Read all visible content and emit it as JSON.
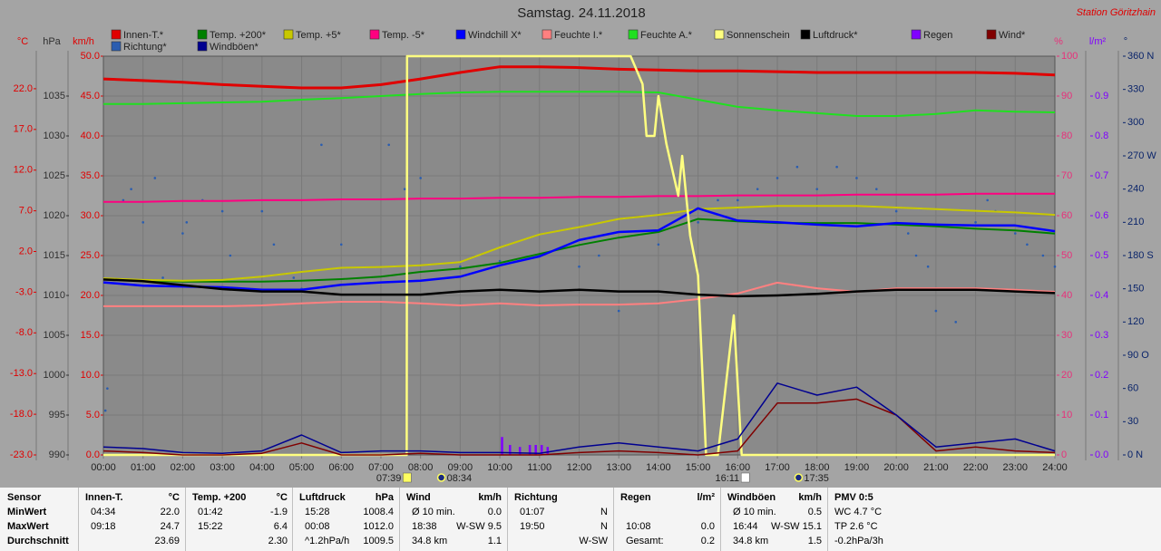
{
  "chart_data": {
    "type": "line",
    "title": "Samstag. 24.11.2018",
    "station": "Station Göritzhain",
    "xlim": [
      0,
      24
    ],
    "xticks": [
      {
        "value": 0,
        "label": "00:00"
      },
      {
        "value": 1,
        "label": "01:00"
      },
      {
        "value": 2,
        "label": "02:00"
      },
      {
        "value": 3,
        "label": "03:00"
      },
      {
        "value": 4,
        "label": "04:00"
      },
      {
        "value": 5,
        "label": "05:00"
      },
      {
        "value": 6,
        "label": "06:00"
      },
      {
        "value": 7,
        "label": "07:00"
      },
      {
        "value": 8,
        "label": "08:00"
      },
      {
        "value": 9,
        "label": "09:00"
      },
      {
        "value": 10,
        "label": "10:00"
      },
      {
        "value": 11,
        "label": "11:00"
      },
      {
        "value": 12,
        "label": "12:00"
      },
      {
        "value": 13,
        "label": "13:00"
      },
      {
        "value": 14,
        "label": "14:00"
      },
      {
        "value": 15,
        "label": "15:00"
      },
      {
        "value": 16,
        "label": "16:00"
      },
      {
        "value": 17,
        "label": "17:00"
      },
      {
        "value": 18,
        "label": "18:00"
      },
      {
        "value": 19,
        "label": "19:00"
      },
      {
        "value": 20,
        "label": "20:00"
      },
      {
        "value": 21,
        "label": "21:00"
      },
      {
        "value": 22,
        "label": "22:00"
      },
      {
        "value": 23,
        "label": "23:00"
      },
      {
        "value": 24,
        "label": "24:00"
      }
    ],
    "x": [
      0,
      1,
      2,
      3,
      4,
      5,
      6,
      7,
      8,
      9,
      10,
      11,
      12,
      13,
      14,
      15,
      16,
      17,
      18,
      19,
      20,
      21,
      22,
      23,
      24
    ],
    "axes": [
      {
        "id": "temp",
        "unit": "°C",
        "color": "#e00000",
        "lim": [
          -23,
          26
        ],
        "ticks": [
          {
            "value": -23,
            "label": "-23.0"
          },
          {
            "value": -18,
            "label": "-18.0"
          },
          {
            "value": -13,
            "label": "-13.0"
          },
          {
            "value": -8,
            "label": "-8.0"
          },
          {
            "value": -3,
            "label": "-3.0"
          },
          {
            "value": 2,
            "label": "2.0"
          },
          {
            "value": 7,
            "label": "7.0"
          },
          {
            "value": 12,
            "label": "12.0"
          },
          {
            "value": 17,
            "label": "17.0"
          },
          {
            "value": 22,
            "label": "22.0"
          }
        ]
      },
      {
        "id": "press",
        "unit": "hPa",
        "color": "#303030",
        "lim": [
          990,
          1040
        ],
        "ticks": [
          990,
          995,
          1000,
          1005,
          1010,
          1015,
          1020,
          1025,
          1030,
          1035
        ]
      },
      {
        "id": "wind",
        "unit": "km/h",
        "color": "#e00000",
        "lim": [
          0,
          50
        ],
        "grid": true,
        "ticks": [
          {
            "value": 0,
            "label": "0.0"
          },
          {
            "value": 5,
            "label": "5.0"
          },
          {
            "value": 10,
            "label": "10.0"
          },
          {
            "value": 15,
            "label": "15.0"
          },
          {
            "value": 20,
            "label": "20.0"
          },
          {
            "value": 25,
            "label": "25.0"
          },
          {
            "value": 30,
            "label": "30.0"
          },
          {
            "value": 35,
            "label": "35.0"
          },
          {
            "value": 40,
            "label": "40.0"
          },
          {
            "value": 45,
            "label": "45.0"
          },
          {
            "value": 50,
            "label": "50.0"
          }
        ]
      },
      {
        "id": "hum",
        "unit": "%",
        "color": "#e8307a",
        "lim": [
          0,
          100
        ],
        "ticks": [
          0,
          10,
          20,
          30,
          40,
          50,
          60,
          70,
          80,
          90,
          100
        ]
      },
      {
        "id": "rain",
        "unit": "l/m²",
        "color": "#8000ff",
        "lim": [
          0,
          1
        ],
        "ticks": [
          {
            "value": 0,
            "label": "0.0"
          },
          0.1,
          0.2,
          0.3,
          0.4,
          0.5,
          0.6,
          0.7,
          0.8,
          0.9
        ]
      },
      {
        "id": "dir",
        "unit": "°",
        "color": "#0a246a",
        "lim": [
          0,
          360
        ],
        "ticks": [
          {
            "value": 0,
            "label": "0 N"
          },
          30,
          60,
          {
            "value": 90,
            "label": "90 O"
          },
          120,
          150,
          {
            "value": 180,
            "label": "180 S"
          },
          210,
          240,
          {
            "value": 270,
            "label": "270 W"
          },
          300,
          330,
          {
            "value": 360,
            "label": "360 N"
          }
        ]
      }
    ],
    "series": [
      {
        "name": "Innen-T.*",
        "color": "#e00000",
        "axis": "temp",
        "style": "line",
        "values": [
          23.2,
          23.0,
          22.8,
          22.5,
          22.3,
          22.1,
          22.1,
          22.5,
          23.2,
          24.0,
          24.7,
          24.7,
          24.6,
          24.4,
          24.3,
          24.2,
          24.2,
          24.1,
          24.0,
          24.0,
          24.0,
          24.0,
          24.0,
          23.9,
          23.7
        ]
      },
      {
        "name": "Temp. +200*",
        "color": "#008000",
        "axis": "temp",
        "style": "line",
        "values": [
          -1.4,
          -1.6,
          -1.7,
          -1.7,
          -1.7,
          -1.6,
          -1.4,
          -1.1,
          -0.5,
          -0.1,
          0.6,
          1.7,
          2.8,
          3.7,
          4.4,
          6.0,
          5.7,
          5.5,
          5.5,
          5.5,
          5.3,
          5.1,
          4.8,
          4.6,
          4.2
        ]
      },
      {
        "name": "Temp. +5*",
        "color": "#c8c800",
        "axis": "temp",
        "style": "line",
        "values": [
          -1.3,
          -1.5,
          -1.6,
          -1.5,
          -1.1,
          -0.5,
          0.0,
          0.1,
          0.3,
          0.7,
          2.5,
          4.1,
          5.0,
          6.0,
          6.5,
          7.2,
          7.4,
          7.6,
          7.6,
          7.6,
          7.4,
          7.2,
          7.0,
          6.8,
          6.5
        ]
      },
      {
        "name": "Temp. -5*",
        "color": "#ff0080",
        "axis": "temp",
        "style": "line",
        "values": [
          8.1,
          8.1,
          8.2,
          8.2,
          8.3,
          8.3,
          8.4,
          8.4,
          8.5,
          8.5,
          8.6,
          8.6,
          8.7,
          8.7,
          8.8,
          8.8,
          8.9,
          8.9,
          8.9,
          9.0,
          9.0,
          9.0,
          9.1,
          9.1,
          9.1
        ]
      },
      {
        "name": "Windchill X*",
        "color": "#0000ff",
        "axis": "temp",
        "style": "line",
        "values": [
          -1.8,
          -2.2,
          -2.3,
          -2.4,
          -2.7,
          -2.7,
          -2.1,
          -1.8,
          -1.6,
          -1.1,
          0.3,
          1.4,
          3.4,
          4.4,
          4.6,
          7.3,
          5.8,
          5.6,
          5.3,
          5.1,
          5.5,
          5.3,
          5.2,
          5.2,
          4.5
        ]
      },
      {
        "name": "Feuchte I.*",
        "color": "#ff8080",
        "axis": "hum",
        "style": "line",
        "values": [
          37.3,
          37.3,
          37.3,
          37.3,
          37.5,
          38.0,
          38.4,
          38.4,
          38.0,
          37.5,
          38.0,
          37.5,
          37.7,
          37.7,
          38.0,
          39.1,
          40.5,
          43.2,
          41.8,
          40.9,
          41.8,
          41.8,
          41.8,
          41.4,
          40.9
        ]
      },
      {
        "name": "Feuchte A.*",
        "color": "#20e020",
        "axis": "hum",
        "style": "line",
        "values": [
          88.0,
          88.0,
          88.2,
          88.4,
          88.6,
          89.1,
          89.5,
          90.0,
          90.5,
          90.9,
          91.1,
          91.1,
          91.1,
          91.1,
          90.9,
          89.1,
          87.3,
          86.4,
          85.7,
          85.0,
          85.0,
          85.5,
          86.4,
          86.1,
          85.9
        ]
      },
      {
        "name": "Sonnenschein",
        "color": "#ffff80",
        "axis": "hum",
        "style": "line",
        "x": [
          0,
          7.65,
          7.66,
          13.3,
          13.6,
          13.7,
          13.9,
          14.0,
          14.2,
          14.5,
          14.6,
          14.8,
          15.0,
          15.2,
          15.5,
          15.9,
          16.1,
          16.2,
          24
        ],
        "values": [
          0,
          0,
          100,
          100,
          93,
          80,
          80,
          90,
          78,
          65,
          75,
          55,
          45,
          0,
          0,
          35,
          0,
          0,
          0
        ]
      },
      {
        "name": "Luftdruck*",
        "color": "#000000",
        "axis": "press",
        "style": "line",
        "values": [
          1012.0,
          1011.8,
          1011.3,
          1010.8,
          1010.5,
          1010.5,
          1010.1,
          1010.1,
          1010.1,
          1010.5,
          1010.7,
          1010.5,
          1010.7,
          1010.5,
          1010.5,
          1010.1,
          1009.9,
          1010.0,
          1010.2,
          1010.5,
          1010.7,
          1010.7,
          1010.7,
          1010.5,
          1010.3
        ]
      },
      {
        "name": "Regen",
        "color": "#8000ff",
        "axis": "rain",
        "style": "bars",
        "x": [
          10.05,
          10.25,
          10.5,
          10.75,
          10.9,
          11.05,
          11.2
        ],
        "values": [
          0.045,
          0.025,
          0.02,
          0.025,
          0.025,
          0.025,
          0.02
        ]
      },
      {
        "name": "Wind*",
        "color": "#800000",
        "axis": "wind",
        "style": "line",
        "values": [
          0.5,
          0.3,
          0,
          0,
          0.2,
          1.5,
          0,
          0,
          0.2,
          0,
          0,
          0,
          0.3,
          0.5,
          0.3,
          0,
          0.5,
          6.5,
          6.5,
          7,
          5,
          0.5,
          1,
          0.5,
          0.3
        ]
      },
      {
        "name": "Richtung*",
        "color": "#2a5db0",
        "axis": "dir",
        "style": "dots",
        "x": [
          0.05,
          0.1,
          0.5,
          0.7,
          1.0,
          1.3,
          1.5,
          2.0,
          2.1,
          2.5,
          3.0,
          3.2,
          4.0,
          4.3,
          4.8,
          5.0,
          5.5,
          6.0,
          7.2,
          7.6,
          8.0,
          9.0,
          10.0,
          11.0,
          12.0,
          12.5,
          13.0,
          14.0,
          15.0,
          15.5,
          16.0,
          16.5,
          17.0,
          17.5,
          18.0,
          18.5,
          19.0,
          19.5,
          20.0,
          20.3,
          20.5,
          20.8,
          21.0,
          21.3,
          21.5,
          22.0,
          22.3,
          22.5,
          23.0,
          23.3,
          23.7,
          24.0
        ],
        "values": [
          40,
          60,
          230,
          240,
          210,
          250,
          160,
          200,
          210,
          230,
          220,
          180,
          220,
          190,
          160,
          150,
          280,
          190,
          280,
          240,
          250,
          170,
          175,
          180,
          170,
          180,
          130,
          190,
          210,
          230,
          230,
          240,
          250,
          260,
          240,
          260,
          250,
          240,
          220,
          200,
          180,
          170,
          130,
          150,
          120,
          210,
          230,
          220,
          200,
          190,
          180,
          170
        ]
      },
      {
        "name": "Windböen*",
        "color": "#000090",
        "axis": "wind",
        "style": "line",
        "values": [
          1,
          0.8,
          0.3,
          0.2,
          0.5,
          2.5,
          0.3,
          0.5,
          0.5,
          0.3,
          0.3,
          0.2,
          1,
          1.5,
          1,
          0.5,
          2,
          9,
          7.5,
          8.5,
          5,
          1,
          1.5,
          2,
          0.5
        ]
      }
    ],
    "annotations": [
      {
        "label": "07:39",
        "x": 7.65,
        "marker": "square",
        "color": "#ffff60"
      },
      {
        "label": "08:34",
        "x": 8.57,
        "marker": "icon",
        "color": "#ffff60"
      },
      {
        "label": "16:11",
        "x": 16.18,
        "marker": "square",
        "color": "#ffffff"
      },
      {
        "label": "17:35",
        "x": 17.58,
        "marker": "icon",
        "color": "#ffff60"
      }
    ]
  },
  "table": {
    "corner": "Sensor",
    "columns": [
      {
        "title": "Innen-T.",
        "unit": "°C"
      },
      {
        "title": "Temp. +200",
        "unit": "°C"
      },
      {
        "title": "Luftdruck",
        "unit": "hPa"
      },
      {
        "title": "Wind",
        "unit": "km/h"
      },
      {
        "title": "Richtung"
      },
      {
        "title": "Regen",
        "unit": "l/m²"
      },
      {
        "title": "Windböen",
        "unit": "km/h"
      },
      {
        "title": "PMV 0:5"
      }
    ],
    "rows": [
      {
        "label": "MinWert",
        "cells": [
          [
            "04:34",
            "22.0"
          ],
          [
            "01:42",
            "-1.9"
          ],
          [
            "15:28",
            "1008.4"
          ],
          [
            "Ø 10 min.",
            "0.0"
          ],
          [
            "01:07",
            "N"
          ],
          [],
          [
            "Ø 10 min.",
            "0.5"
          ],
          [
            "WC 4.7 °C"
          ]
        ]
      },
      {
        "label": "MaxWert",
        "cells": [
          [
            "09:18",
            "24.7"
          ],
          [
            "15:22",
            "6.4"
          ],
          [
            "00:08",
            "1012.0"
          ],
          [
            "18:38",
            "W-SW 9.5"
          ],
          [
            "19:50",
            "N"
          ],
          [
            "10:08",
            "0.0"
          ],
          [
            "16:44",
            "W-SW 15.1"
          ],
          [
            "TP 2.6 °C"
          ]
        ]
      },
      {
        "label": "Durchschnitt",
        "cells": [
          [
            "23.69"
          ],
          [
            "2.30"
          ],
          [
            "^1.2hPa/h",
            "1009.5"
          ],
          [
            "34.8 km",
            "1.1"
          ],
          [
            "W-SW"
          ],
          [
            "Gesamt:",
            "0.2"
          ],
          [
            "34.8 km",
            "1.5"
          ],
          [
            "-0.2hPa/3h"
          ]
        ]
      }
    ]
  }
}
